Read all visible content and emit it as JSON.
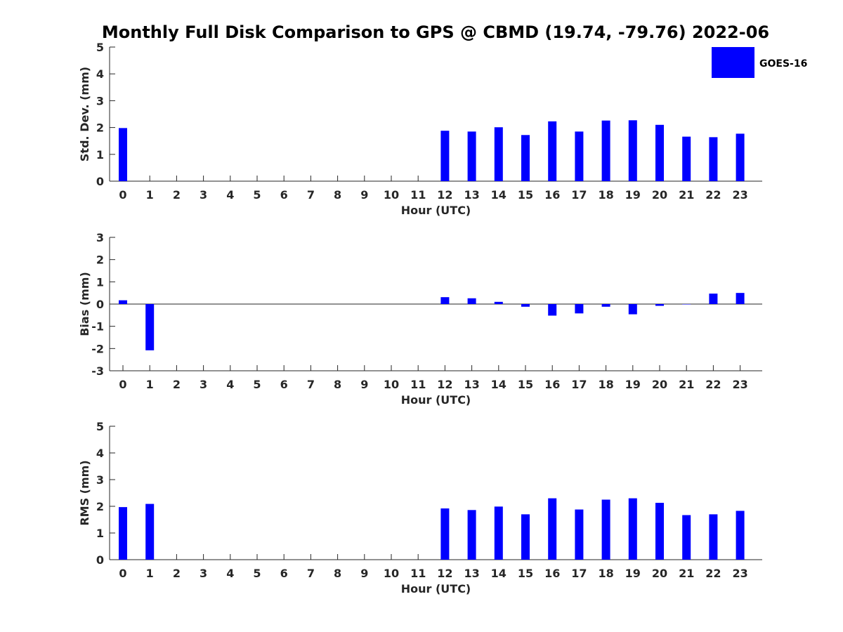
{
  "title": "Monthly Full Disk Comparison to GPS @ CBMD (19.74, -79.76) 2022-06",
  "legend": {
    "label": "GOES-16",
    "color": "#0000ff"
  },
  "chart_data": [
    {
      "type": "bar",
      "xlabel": "Hour (UTC)",
      "ylabel": "Std. Dev. (mm)",
      "ylim": [
        0,
        5
      ],
      "yticks": [
        0,
        1,
        2,
        3,
        4,
        5
      ],
      "grid": false,
      "legend_position": "top-right",
      "categories": [
        "0",
        "1",
        "2",
        "3",
        "4",
        "5",
        "6",
        "7",
        "8",
        "9",
        "10",
        "11",
        "12",
        "13",
        "14",
        "15",
        "16",
        "17",
        "18",
        "19",
        "20",
        "21",
        "22",
        "23"
      ],
      "series": [
        {
          "name": "GOES-16",
          "values": [
            1.98,
            null,
            null,
            null,
            null,
            null,
            null,
            null,
            null,
            null,
            null,
            null,
            1.88,
            1.85,
            2.01,
            1.72,
            2.23,
            1.85,
            2.26,
            2.27,
            2.1,
            1.66,
            1.64,
            1.77
          ]
        }
      ]
    },
    {
      "type": "bar",
      "xlabel": "Hour (UTC)",
      "ylabel": "Bias (mm)",
      "ylim": [
        -3,
        3
      ],
      "yticks": [
        -3,
        -2,
        -1,
        0,
        1,
        2,
        3
      ],
      "grid": false,
      "zero_line": true,
      "categories": [
        "0",
        "1",
        "2",
        "3",
        "4",
        "5",
        "6",
        "7",
        "8",
        "9",
        "10",
        "11",
        "12",
        "13",
        "14",
        "15",
        "16",
        "17",
        "18",
        "19",
        "20",
        "21",
        "22",
        "23"
      ],
      "series": [
        {
          "name": "GOES-16",
          "values": [
            0.17,
            -2.08,
            null,
            null,
            null,
            null,
            null,
            null,
            null,
            null,
            null,
            null,
            0.31,
            0.26,
            0.1,
            -0.12,
            -0.52,
            -0.42,
            -0.12,
            -0.46,
            -0.08,
            0.0,
            0.47,
            0.5
          ]
        }
      ]
    },
    {
      "type": "bar",
      "xlabel": "Hour (UTC)",
      "ylabel": "RMS (mm)",
      "ylim": [
        0,
        5
      ],
      "yticks": [
        0,
        1,
        2,
        3,
        4,
        5
      ],
      "grid": false,
      "categories": [
        "0",
        "1",
        "2",
        "3",
        "4",
        "5",
        "6",
        "7",
        "8",
        "9",
        "10",
        "11",
        "12",
        "13",
        "14",
        "15",
        "16",
        "17",
        "18",
        "19",
        "20",
        "21",
        "22",
        "23"
      ],
      "series": [
        {
          "name": "GOES-16",
          "values": [
            1.97,
            2.09,
            null,
            null,
            null,
            null,
            null,
            null,
            null,
            null,
            null,
            null,
            1.92,
            1.86,
            1.99,
            1.7,
            2.3,
            1.88,
            2.25,
            2.3,
            2.13,
            1.67,
            1.7,
            1.83
          ]
        }
      ]
    }
  ]
}
